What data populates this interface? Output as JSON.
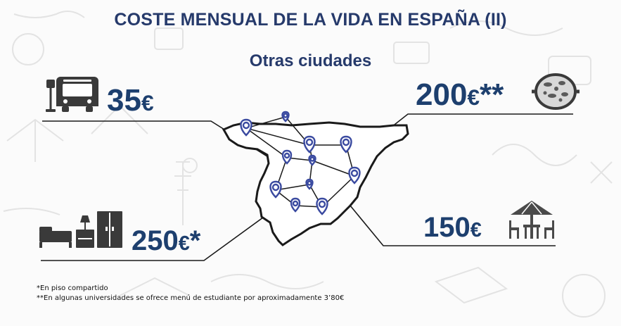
{
  "header": {
    "title": "COSTE MENSUAL DE LA VIDA EN ESPAÑA (II)",
    "subtitle": "Otras ciudades"
  },
  "costs": {
    "transport": {
      "amount": "35",
      "symbol": "€",
      "suffix": "",
      "icon": "bus-icon"
    },
    "food": {
      "amount": "200",
      "symbol": "€",
      "suffix": "**",
      "icon": "paella-icon"
    },
    "housing": {
      "amount": "250",
      "symbol": "€",
      "suffix": "*",
      "icon": "furniture-icon"
    },
    "leisure": {
      "amount": "150",
      "symbol": "€",
      "suffix": "",
      "icon": "terrace-umbrella-icon"
    }
  },
  "footnotes": {
    "note1": "*En piso compartido",
    "note2": "**En algunas universidades se ofrece menú de estudiante por aproximadamente 3’80€"
  },
  "colors": {
    "title": "#263a6b",
    "price": "#1d3f6e",
    "pin": "#3a4aa0",
    "map_fill": "#ffffff",
    "map_outline": "#1a1a1a",
    "icon": "#3a3a3a"
  }
}
